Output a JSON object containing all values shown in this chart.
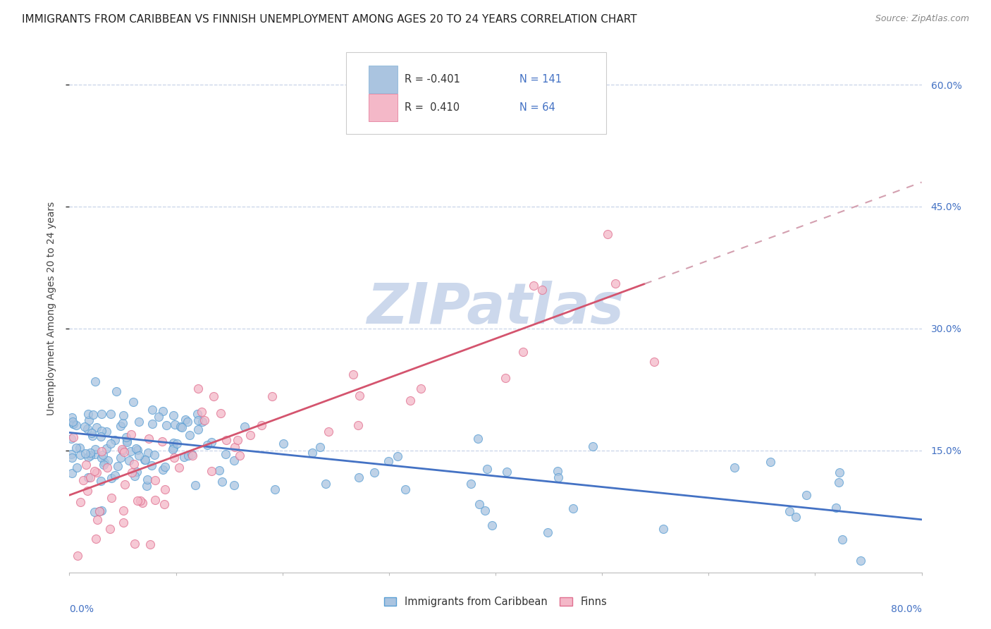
{
  "title": "IMMIGRANTS FROM CARIBBEAN VS FINNISH UNEMPLOYMENT AMONG AGES 20 TO 24 YEARS CORRELATION CHART",
  "source": "Source: ZipAtlas.com",
  "ylabel": "Unemployment Among Ages 20 to 24 years",
  "yticks": [
    "15.0%",
    "30.0%",
    "45.0%",
    "60.0%"
  ],
  "ytick_values": [
    0.15,
    0.3,
    0.45,
    0.6
  ],
  "xlim": [
    0.0,
    0.8
  ],
  "ylim": [
    0.0,
    0.65
  ],
  "series1_color": "#aac4e0",
  "series1_edge": "#5a9fd4",
  "series2_color": "#f4b8c8",
  "series2_edge": "#e07090",
  "line1_color": "#4472c4",
  "line2_color": "#d4546e",
  "line2_dashed_color": "#d4a0b0",
  "watermark": "ZIPatlas",
  "watermark_color": "#ccd8ec",
  "trendline1_x0": 0.0,
  "trendline1_x1": 0.8,
  "trendline1_y0": 0.172,
  "trendline1_y1": 0.065,
  "trendline2_solid_x0": 0.0,
  "trendline2_solid_x1": 0.54,
  "trendline2_solid_y0": 0.095,
  "trendline2_solid_y1": 0.355,
  "trendline2_dashed_x0": 0.54,
  "trendline2_dashed_x1": 0.8,
  "trendline2_dashed_y0": 0.355,
  "trendline2_dashed_y1": 0.48,
  "background_color": "#ffffff",
  "grid_color": "#c8d4e8",
  "title_fontsize": 11,
  "axis_label_fontsize": 10,
  "tick_fontsize": 10,
  "legend_label1": "R = -0.401",
  "legend_n1": "N = 141",
  "legend_label2": "R =  0.410",
  "legend_n2": "N = 64",
  "bottom_legend1": "Immigrants from Caribbean",
  "bottom_legend2": "Finns"
}
